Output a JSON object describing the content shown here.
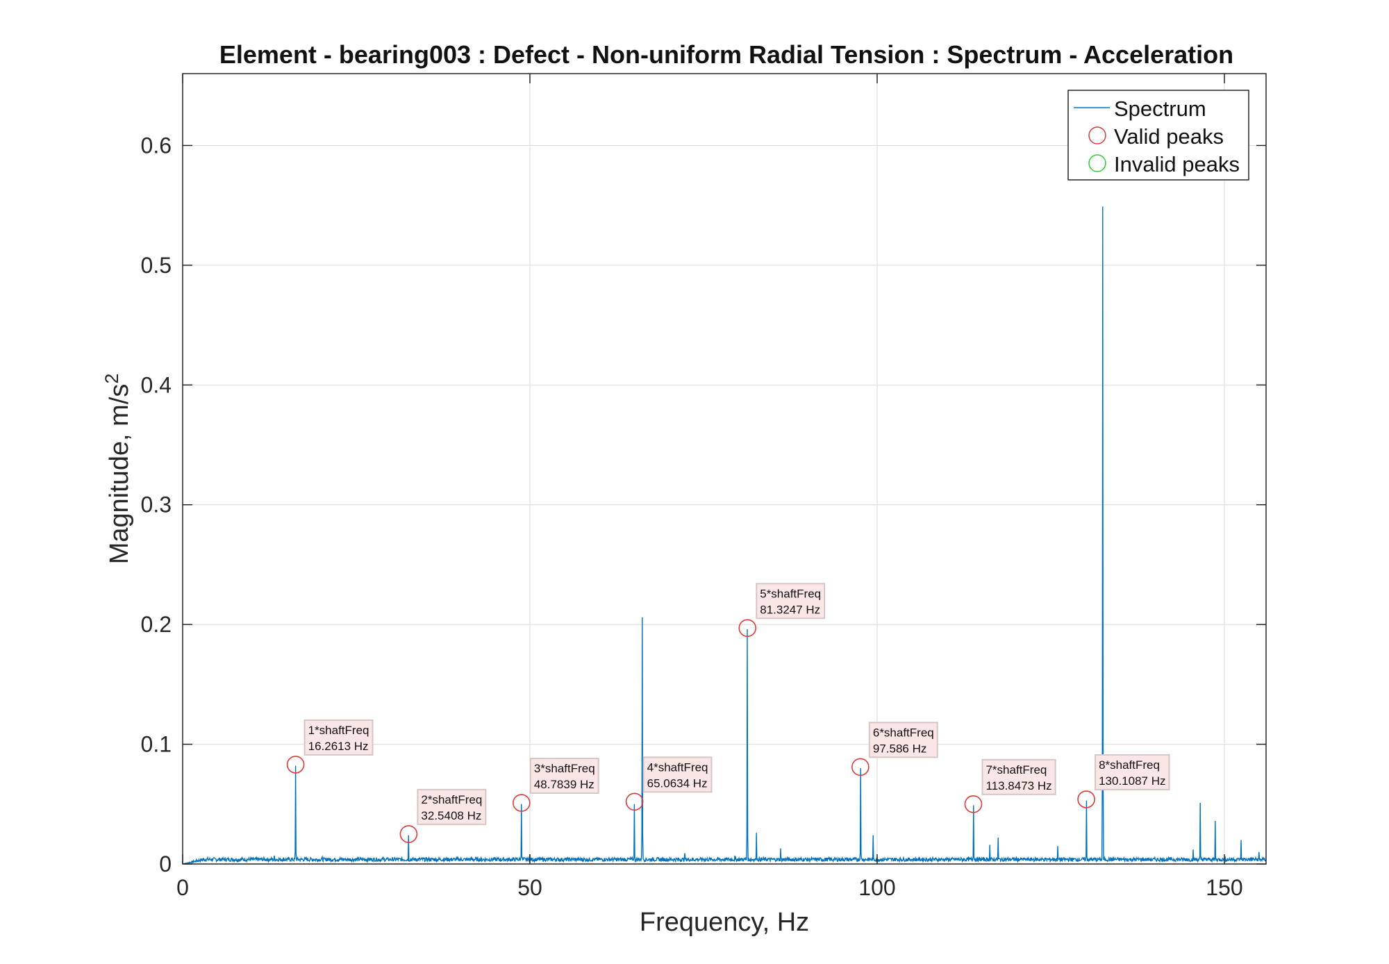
{
  "chart_data": {
    "type": "line",
    "title": "Element - bearing003 : Defect - Non-uniform Radial Tension : Spectrum - Acceleration",
    "xlabel": "Frequency, Hz",
    "ylabel_main": "Magnitude, m/s",
    "ylabel_sup": "2",
    "xlim": [
      0,
      156
    ],
    "ylim": [
      0,
      0.66
    ],
    "xticks": [
      0,
      50,
      100,
      150
    ],
    "yticks": [
      0,
      0.1,
      0.2,
      0.3,
      0.4,
      0.5,
      0.6
    ],
    "xtick_labels": [
      "0",
      "50",
      "100",
      "150"
    ],
    "ytick_labels": [
      "0",
      "0.1",
      "0.2",
      "0.3",
      "0.4",
      "0.5",
      "0.6"
    ],
    "grid": true,
    "legend_position": "top-right",
    "legend": [
      {
        "label": "Spectrum",
        "marker": "line",
        "color": "#0072BD"
      },
      {
        "label": "Valid peaks",
        "marker": "circle",
        "color": "#e03a3a"
      },
      {
        "label": "Invalid peaks",
        "marker": "circle",
        "color": "#33cc33"
      }
    ],
    "spectrum_color": "#0072BD",
    "spectrum_spikes": [
      {
        "x": 13.2,
        "y": 0.007
      },
      {
        "x": 16.26,
        "y": 0.082
      },
      {
        "x": 20.1,
        "y": 0.006
      },
      {
        "x": 32.54,
        "y": 0.024
      },
      {
        "x": 48.78,
        "y": 0.05
      },
      {
        "x": 50.0,
        "y": 0.008
      },
      {
        "x": 65.06,
        "y": 0.05
      },
      {
        "x": 66.2,
        "y": 0.206
      },
      {
        "x": 72.3,
        "y": 0.009
      },
      {
        "x": 79.5,
        "y": 0.007
      },
      {
        "x": 81.32,
        "y": 0.196
      },
      {
        "x": 82.6,
        "y": 0.026
      },
      {
        "x": 86.1,
        "y": 0.013
      },
      {
        "x": 97.59,
        "y": 0.08
      },
      {
        "x": 99.4,
        "y": 0.024
      },
      {
        "x": 113.85,
        "y": 0.049
      },
      {
        "x": 116.2,
        "y": 0.016
      },
      {
        "x": 117.4,
        "y": 0.022
      },
      {
        "x": 126.0,
        "y": 0.015
      },
      {
        "x": 130.11,
        "y": 0.053
      },
      {
        "x": 132.5,
        "y": 0.549
      },
      {
        "x": 145.5,
        "y": 0.012
      },
      {
        "x": 146.5,
        "y": 0.051
      },
      {
        "x": 148.7,
        "y": 0.036
      },
      {
        "x": 152.4,
        "y": 0.02
      },
      {
        "x": 155.0,
        "y": 0.01
      }
    ],
    "peaks": [
      {
        "name": "1*shaftFreq",
        "freq_label": "16.2613 Hz",
        "x": 16.2613,
        "y": 0.083,
        "valid": true
      },
      {
        "name": "2*shaftFreq",
        "freq_label": "32.5408 Hz",
        "x": 32.5408,
        "y": 0.025,
        "valid": true
      },
      {
        "name": "3*shaftFreq",
        "freq_label": "48.7839 Hz",
        "x": 48.7839,
        "y": 0.051,
        "valid": true
      },
      {
        "name": "4*shaftFreq",
        "freq_label": "65.0634 Hz",
        "x": 65.0634,
        "y": 0.052,
        "valid": true
      },
      {
        "name": "5*shaftFreq",
        "freq_label": "81.3247 Hz",
        "x": 81.3247,
        "y": 0.197,
        "valid": true
      },
      {
        "name": "6*shaftFreq",
        "freq_label": "97.586 Hz",
        "x": 97.586,
        "y": 0.081,
        "valid": true
      },
      {
        "name": "7*shaftFreq",
        "freq_label": "113.8473 Hz",
        "x": 113.8473,
        "y": 0.05,
        "valid": true
      },
      {
        "name": "8*shaftFreq",
        "freq_label": "130.1087 Hz",
        "x": 130.1087,
        "y": 0.054,
        "valid": true
      }
    ]
  }
}
